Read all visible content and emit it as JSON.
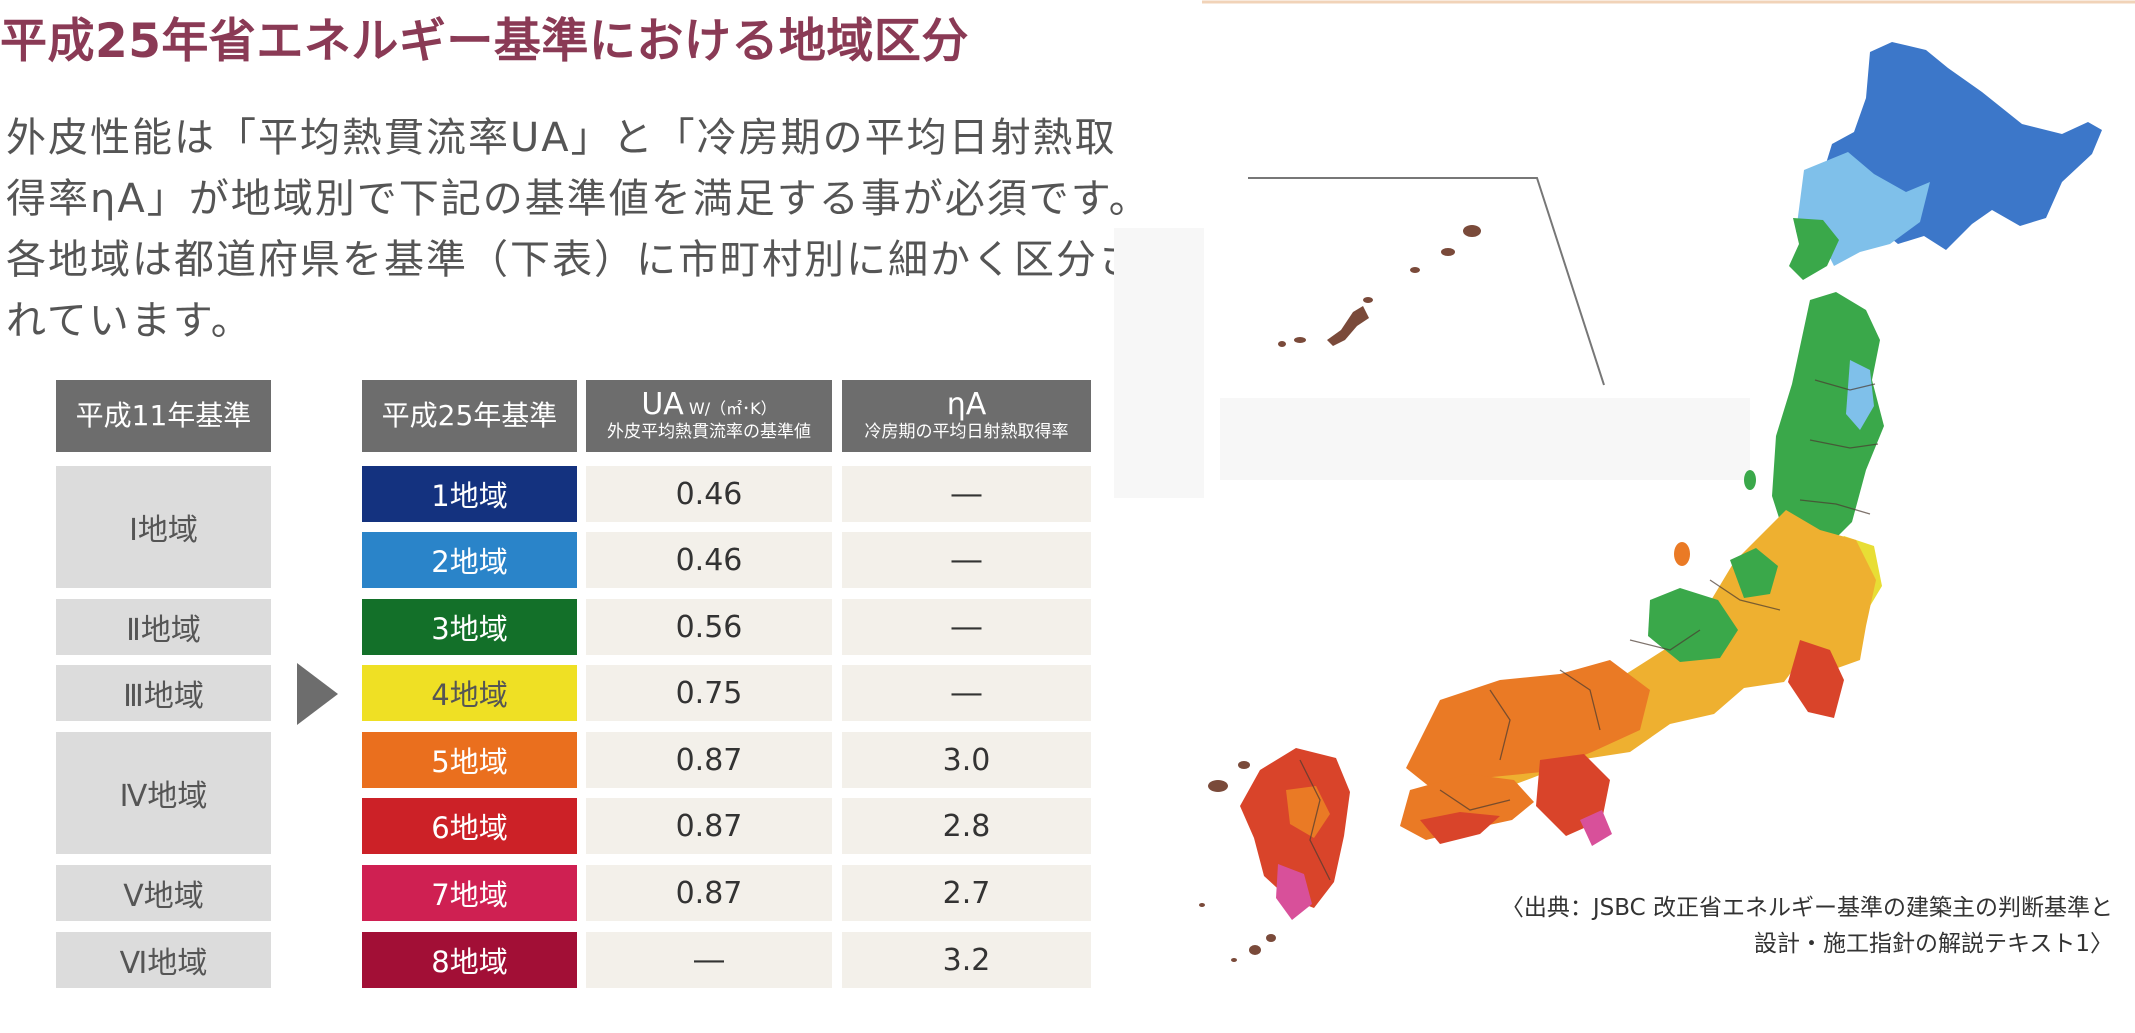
{
  "title": "平成25年省エネルギー基準における地域区分",
  "intro": [
    "外皮性能は「平均熱貫流率UA」と「冷房期の平均日射熱取",
    "得率ηA」が地域別で下記の基準値を満足する事が必須です。",
    "各地域は都道府県を基準（下表）に市町村別に細かく区分さ",
    "れています。"
  ],
  "table": {
    "old_header": "平成11年基準",
    "new_header": "平成25年基準",
    "ua_header": "UA",
    "ua_unit": "W/（㎡･K）",
    "ua_sub": "外皮平均熱貫流率の基準値",
    "eta_header": "ηA",
    "eta_sub": "冷房期の平均日射熱取得率",
    "old_zones": [
      "Ⅰ地域",
      "Ⅱ地域",
      "Ⅲ地域",
      "Ⅳ地域",
      "Ⅴ地域",
      "Ⅵ地域"
    ],
    "rows": [
      {
        "zone": "1地域",
        "ua": "0.46",
        "eta": "―",
        "color": "#14327f"
      },
      {
        "zone": "2地域",
        "ua": "0.46",
        "eta": "―",
        "color": "#2a84c9"
      },
      {
        "zone": "3地域",
        "ua": "0.56",
        "eta": "―",
        "color": "#137029"
      },
      {
        "zone": "4地域",
        "ua": "0.75",
        "eta": "―",
        "color": "#efe024"
      },
      {
        "zone": "5地域",
        "ua": "0.87",
        "eta": "3.0",
        "color": "#ea6f1e"
      },
      {
        "zone": "6地域",
        "ua": "0.87",
        "eta": "2.8",
        "color": "#cc2127"
      },
      {
        "zone": "7地域",
        "ua": "0.87",
        "eta": "2.7",
        "color": "#cf2052"
      },
      {
        "zone": "8地域",
        "ua": "―",
        "eta": "3.2",
        "color": "#a20f36"
      }
    ]
  },
  "source": [
    "〈出典：JSBC 改正省エネルギー基準の建築主の判断基準と",
    "設計・施工指針の解説テキスト1〉"
  ],
  "colors": {
    "title": "#8a3a55",
    "header_bg": "#6d6d6d",
    "old_zone_bg": "#dcdcdc",
    "value_bg": "#f3f0ea"
  }
}
